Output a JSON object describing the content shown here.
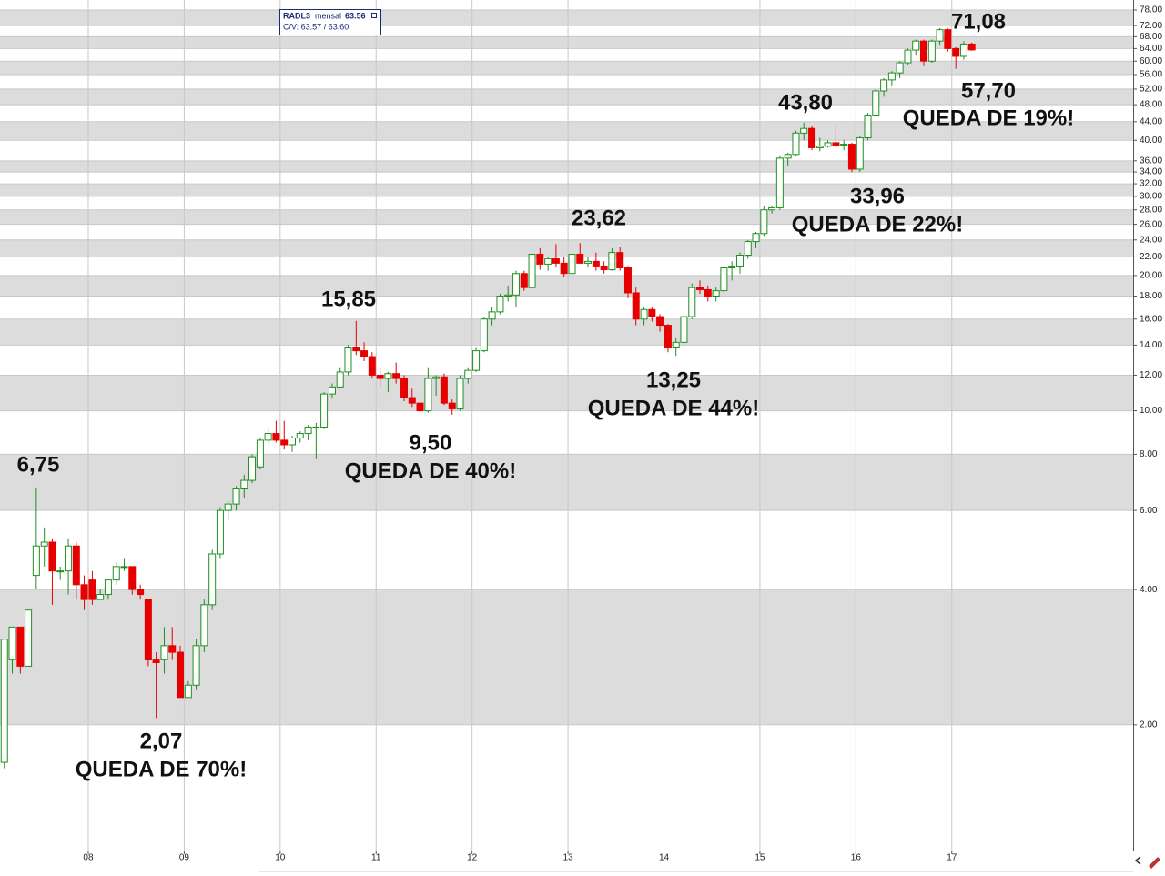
{
  "chart_data": {
    "type": "candlestick",
    "log_scale": true,
    "grid": true,
    "info": {
      "ticker": "RADL3",
      "period": "mensal",
      "last": 63.56,
      "cv": "C/V: 63.57 / 63.60"
    },
    "up_color": "#1f8f1f",
    "down_color": "#e60000",
    "band_color": "#dcdcdc",
    "xlim": [
      2007.08,
      2018.89
    ],
    "xticks": [
      {
        "value": 2008,
        "label": "08"
      },
      {
        "value": 2009,
        "label": "09"
      },
      {
        "value": 2010,
        "label": "10"
      },
      {
        "value": 2011,
        "label": "11"
      },
      {
        "value": 2012,
        "label": "12"
      },
      {
        "value": 2013,
        "label": "13"
      },
      {
        "value": 2014,
        "label": "14"
      },
      {
        "value": 2015,
        "label": "15"
      },
      {
        "value": 2016,
        "label": "16"
      },
      {
        "value": 2017,
        "label": "17"
      }
    ],
    "ylim": [
      1.05,
      80.2
    ],
    "yticks": [
      {
        "value": 2,
        "label": "2.00"
      },
      {
        "value": 4,
        "label": "4.00"
      },
      {
        "value": 6,
        "label": "6.00"
      },
      {
        "value": 8,
        "label": "8.00"
      },
      {
        "value": 10,
        "label": "10.00"
      },
      {
        "value": 12,
        "label": "12.00"
      },
      {
        "value": 14,
        "label": "14.00"
      },
      {
        "value": 16,
        "label": "16.00"
      },
      {
        "value": 18,
        "label": "18.00"
      },
      {
        "value": 20,
        "label": "20.00"
      },
      {
        "value": 22,
        "label": "22.00"
      },
      {
        "value": 24,
        "label": "24.00"
      },
      {
        "value": 26,
        "label": "26.00"
      },
      {
        "value": 28,
        "label": "28.00"
      },
      {
        "value": 30,
        "label": "30.00"
      },
      {
        "value": 32,
        "label": "32.00"
      },
      {
        "value": 34,
        "label": "34.00"
      },
      {
        "value": 36,
        "label": "36.00"
      },
      {
        "value": 40,
        "label": "40.00"
      },
      {
        "value": 44,
        "label": "44.00"
      },
      {
        "value": 48,
        "label": "48.00"
      },
      {
        "value": 52,
        "label": "52.00"
      },
      {
        "value": 56,
        "label": "56.00"
      },
      {
        "value": 60,
        "label": "60.00"
      },
      {
        "value": 64,
        "label": "64.00"
      },
      {
        "value": 68,
        "label": "68.00"
      },
      {
        "value": 72,
        "label": "72.00"
      },
      {
        "value": 78,
        "label": "78.00"
      }
    ],
    "annotations": [
      "6,75",
      "2,07",
      "QUEDA DE 70%!",
      "15,85",
      "9,50",
      "QUEDA DE 40%!",
      "23,62",
      "13,25",
      "QUEDA DE 44%!",
      "43,80",
      "33,96",
      "QUEDA DE 22%!",
      "71,08",
      "57,70",
      "QUEDA DE 19%!"
    ],
    "x": [
      2007.125,
      2007.208,
      2007.292,
      2007.375,
      2007.458,
      2007.542,
      2007.625,
      2007.708,
      2007.792,
      2007.875,
      2007.958,
      2008.042,
      2008.125,
      2008.208,
      2008.292,
      2008.375,
      2008.458,
      2008.542,
      2008.625,
      2008.708,
      2008.792,
      2008.875,
      2008.958,
      2009.042,
      2009.125,
      2009.208,
      2009.292,
      2009.375,
      2009.458,
      2009.542,
      2009.625,
      2009.708,
      2009.792,
      2009.875,
      2009.958,
      2010.042,
      2010.125,
      2010.208,
      2010.292,
      2010.375,
      2010.458,
      2010.542,
      2010.625,
      2010.708,
      2010.792,
      2010.875,
      2010.958,
      2011.042,
      2011.125,
      2011.208,
      2011.292,
      2011.375,
      2011.458,
      2011.542,
      2011.625,
      2011.708,
      2011.792,
      2011.875,
      2011.958,
      2012.042,
      2012.125,
      2012.208,
      2012.292,
      2012.375,
      2012.458,
      2012.542,
      2012.625,
      2012.708,
      2012.792,
      2012.875,
      2012.958,
      2013.042,
      2013.125,
      2013.208,
      2013.292,
      2013.375,
      2013.458,
      2013.542,
      2013.625,
      2013.708,
      2013.792,
      2013.875,
      2013.958,
      2014.042,
      2014.125,
      2014.208,
      2014.292,
      2014.375,
      2014.458,
      2014.542,
      2014.625,
      2014.708,
      2014.792,
      2014.875,
      2014.958,
      2015.042,
      2015.125,
      2015.208,
      2015.292,
      2015.375,
      2015.458,
      2015.542,
      2015.625,
      2015.708,
      2015.792,
      2015.875,
      2015.958,
      2016.042,
      2016.125,
      2016.208,
      2016.292,
      2016.375,
      2016.458,
      2016.542,
      2016.625,
      2016.708,
      2016.792,
      2016.875,
      2016.958,
      2017.042,
      2017.125,
      2017.208
    ],
    "open": [
      1.65,
      2.8,
      3.3,
      2.7,
      4.3,
      5.0,
      5.1,
      4.4,
      4.4,
      5.0,
      4.1,
      4.2,
      3.8,
      3.9,
      4.2,
      4.5,
      4.5,
      4.0,
      3.8,
      2.8,
      2.8,
      3.0,
      2.9,
      2.3,
      2.45,
      3.0,
      3.7,
      4.8,
      6.0,
      6.2,
      6.7,
      7.0,
      7.5,
      8.6,
      8.9,
      8.6,
      8.4,
      8.7,
      8.9,
      9.2,
      9.2,
      10.9,
      11.3,
      12.2,
      13.8,
      13.6,
      13.2,
      12.0,
      11.8,
      12.1,
      11.8,
      10.7,
      10.4,
      10.0,
      11.8,
      11.9,
      10.4,
      10.1,
      11.8,
      12.3,
      13.6,
      16.0,
      16.6,
      18.0,
      18.1,
      20.2,
      18.8,
      22.3,
      21.2,
      21.8,
      21.3,
      20.2,
      22.3,
      21.3,
      21.5,
      21.0,
      20.6,
      22.5,
      20.8,
      18.3,
      16.0,
      16.8,
      16.2,
      15.5,
      13.8,
      14.2,
      16.2,
      18.8,
      18.6,
      18.0,
      18.5,
      20.8,
      21.0,
      22.2,
      23.8,
      24.8,
      28.0,
      28.3,
      36.5,
      37.2,
      41.5,
      42.5,
      38.5,
      38.8,
      39.5,
      39.0,
      39.2,
      34.5,
      40.5,
      45.5,
      51.5,
      54.5,
      56.5,
      59.5,
      63.5,
      66.5,
      60,
      66.5,
      70.5,
      64,
      61.5,
      65.5
    ],
    "high": [
      3.1,
      3.3,
      3.3,
      3.6,
      6.75,
      5.5,
      5.2,
      4.5,
      5.2,
      5.1,
      4.3,
      4.4,
      4.0,
      4.2,
      4.6,
      4.7,
      4.5,
      4.1,
      3.8,
      2.9,
      3.3,
      3.3,
      3.0,
      2.5,
      3.1,
      3.8,
      4.9,
      6.1,
      6.3,
      6.8,
      7.2,
      8.0,
      8.7,
      9.2,
      9.5,
      9.5,
      8.8,
      9.0,
      9.3,
      9.4,
      11.0,
      11.5,
      12.5,
      14.0,
      15.85,
      14.2,
      13.5,
      12.5,
      12.2,
      12.8,
      12.0,
      11.2,
      10.8,
      12.5,
      12.0,
      12.1,
      10.6,
      12.0,
      12.5,
      13.8,
      16.2,
      17.0,
      18.2,
      19.0,
      20.5,
      20.5,
      22.5,
      23.0,
      22.0,
      23.5,
      22.0,
      22.5,
      23.62,
      22.0,
      22.5,
      21.5,
      23.0,
      23.2,
      21.0,
      18.8,
      17.0,
      17.0,
      16.4,
      15.6,
      14.5,
      16.5,
      19.2,
      19.5,
      19.0,
      18.8,
      21.0,
      21.5,
      22.5,
      24.0,
      25.0,
      28.5,
      28.5,
      37.0,
      37.5,
      42.0,
      43.8,
      43.0,
      40.5,
      40.0,
      43.5,
      40.0,
      39.5,
      41,
      46,
      52,
      55,
      57,
      60,
      64,
      67,
      67,
      67,
      71.08,
      71,
      64.5,
      66.5,
      66
    ],
    "low": [
      1.6,
      2.6,
      2.6,
      2.7,
      4.0,
      4.5,
      3.7,
      4.2,
      3.9,
      3.8,
      3.6,
      3.7,
      3.8,
      3.8,
      4.1,
      4.4,
      3.9,
      3.8,
      2.7,
      2.07,
      2.6,
      2.8,
      2.3,
      2.3,
      2.4,
      2.9,
      3.6,
      4.7,
      5.7,
      6.0,
      6.4,
      6.9,
      7.4,
      8.4,
      8.5,
      8.2,
      8.1,
      8.5,
      8.6,
      7.8,
      9.1,
      10.7,
      11.2,
      12.0,
      13.3,
      12.9,
      11.8,
      11.3,
      11.0,
      11.5,
      10.5,
      10.2,
      9.5,
      9.9,
      10.8,
      10.3,
      9.8,
      10.0,
      11.5,
      12.2,
      13.5,
      15.5,
      16.4,
      17.5,
      17.0,
      18.5,
      18.6,
      20.6,
      20.5,
      20.9,
      19.8,
      19.9,
      21.5,
      20.9,
      20.5,
      20.2,
      20.5,
      20.5,
      17.8,
      15.5,
      15.5,
      15.8,
      15.0,
      13.5,
      13.25,
      13.8,
      16.0,
      18.2,
      17.5,
      17.5,
      18.3,
      19.5,
      20.2,
      21.8,
      23.0,
      24.5,
      27.5,
      28.0,
      35.0,
      37.0,
      40.0,
      38.0,
      37.8,
      38.5,
      38.5,
      38.0,
      33.96,
      34,
      40,
      45,
      50,
      53,
      55,
      59,
      62,
      58.5,
      59.5,
      65,
      63,
      57.7,
      60.5,
      63.3
    ],
    "close": [
      3.1,
      3.3,
      2.7,
      3.6,
      5.0,
      5.1,
      4.4,
      4.4,
      5.0,
      4.1,
      3.8,
      3.8,
      3.9,
      4.2,
      4.5,
      4.5,
      4.0,
      3.9,
      2.8,
      2.75,
      3.0,
      2.9,
      2.3,
      2.45,
      3.0,
      3.7,
      4.8,
      6.0,
      6.2,
      6.7,
      7.0,
      7.9,
      8.6,
      8.9,
      8.6,
      8.4,
      8.7,
      8.9,
      9.2,
      9.2,
      10.9,
      11.3,
      12.2,
      13.8,
      13.6,
      13.2,
      12.0,
      11.8,
      12.1,
      11.8,
      10.7,
      10.4,
      10.0,
      11.8,
      11.9,
      10.4,
      10.1,
      11.8,
      12.3,
      13.6,
      16.0,
      16.6,
      18.0,
      18.1,
      20.2,
      18.8,
      22.3,
      21.2,
      21.8,
      21.3,
      20.2,
      22.3,
      21.3,
      21.5,
      21.0,
      20.6,
      22.5,
      20.8,
      18.3,
      16.0,
      16.8,
      16.2,
      15.5,
      13.8,
      14.2,
      16.2,
      18.8,
      18.6,
      18.0,
      18.5,
      20.8,
      21.0,
      22.2,
      23.8,
      24.8,
      28.0,
      28.3,
      36.5,
      37.2,
      41.5,
      42.5,
      38.5,
      38.8,
      39.5,
      39.0,
      39.2,
      34.5,
      40.5,
      45.5,
      51.5,
      54.5,
      56.5,
      59.5,
      63.5,
      66.5,
      60,
      66.5,
      70.5,
      64,
      61.5,
      65.5,
      63.56
    ]
  }
}
